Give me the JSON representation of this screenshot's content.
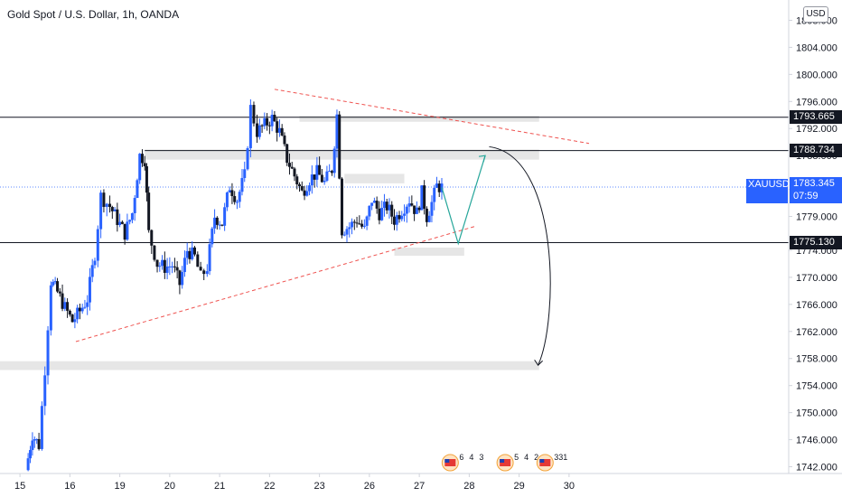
{
  "header": {
    "title": "Gold Spot / U.S. Dollar, 1h, OANDA",
    "currency_button": "USD"
  },
  "ticker": {
    "symbol": "XAUUSD",
    "price": "1783.345",
    "countdown": "07:59"
  },
  "colors": {
    "up": "#2962ff",
    "down": "#131722",
    "ticker_bg": "#2962ff",
    "trendline": "#ef5350",
    "projection": "#26a69a",
    "zone": "#e6e6e6"
  },
  "chart_data": {
    "type": "candlestick",
    "title": "Gold Spot / U.S. Dollar, 1h, OANDA",
    "ylim": [
      1741,
      1811
    ],
    "xlim": [
      14.6,
      30.4
    ],
    "yticks": [
      "1742.000",
      "1746.000",
      "1750.000",
      "1754.000",
      "1758.000",
      "1762.000",
      "1766.000",
      "1770.000",
      "1774.000",
      "1779.000",
      "1783.000",
      "1788.000",
      "1792.000",
      "1796.000",
      "1800.000",
      "1804.000",
      "1808.000"
    ],
    "ytick_values": [
      1742,
      1746,
      1750,
      1754,
      1758,
      1762,
      1766,
      1770,
      1774,
      1779,
      1783,
      1788,
      1792,
      1796,
      1800,
      1804,
      1808
    ],
    "xticks": [
      {
        "label": "15",
        "x": 15
      },
      {
        "label": "16",
        "x": 16
      },
      {
        "label": "19",
        "x": 17
      },
      {
        "label": "20",
        "x": 18
      },
      {
        "label": "21",
        "x": 19
      },
      {
        "label": "22",
        "x": 20
      },
      {
        "label": "23",
        "x": 21
      },
      {
        "label": "26",
        "x": 22
      },
      {
        "label": "27",
        "x": 23
      },
      {
        "label": "28",
        "x": 24
      },
      {
        "label": "29",
        "x": 25
      },
      {
        "label": "30",
        "x": 26
      }
    ],
    "price_path": [
      [
        15.12,
        1741.5
      ],
      [
        15.25,
        1746.8
      ],
      [
        15.38,
        1745.2
      ],
      [
        15.5,
        1756.5
      ],
      [
        15.62,
        1769.5
      ],
      [
        15.75,
        1767.8
      ],
      [
        15.9,
        1765.5
      ],
      [
        16.05,
        1763.5
      ],
      [
        16.2,
        1765.0
      ],
      [
        16.35,
        1766.8
      ],
      [
        16.5,
        1773.5
      ],
      [
        16.62,
        1782.0
      ],
      [
        16.8,
        1780.5
      ],
      [
        16.95,
        1778.5
      ],
      [
        17.1,
        1776.5
      ],
      [
        17.25,
        1779.5
      ],
      [
        17.4,
        1788.0
      ],
      [
        17.5,
        1787.5
      ],
      [
        17.58,
        1776.5
      ],
      [
        17.75,
        1772.0
      ],
      [
        17.9,
        1771.5
      ],
      [
        18.05,
        1771.8
      ],
      [
        18.2,
        1769.0
      ],
      [
        18.35,
        1774.0
      ],
      [
        18.5,
        1773.0
      ],
      [
        18.62,
        1770.0
      ],
      [
        18.75,
        1771.5
      ],
      [
        18.9,
        1779.0
      ],
      [
        19.05,
        1778.0
      ],
      [
        19.2,
        1783.5
      ],
      [
        19.35,
        1781.5
      ],
      [
        19.5,
        1785.0
      ],
      [
        19.62,
        1795.0
      ],
      [
        19.75,
        1791.5
      ],
      [
        19.9,
        1792.5
      ],
      [
        20.05,
        1793.5
      ],
      [
        20.2,
        1791.5
      ],
      [
        20.35,
        1787.5
      ],
      [
        20.5,
        1785.0
      ],
      [
        20.65,
        1782.5
      ],
      [
        20.8,
        1784.5
      ],
      [
        20.95,
        1785.5
      ],
      [
        21.1,
        1784.0
      ],
      [
        21.25,
        1786.0
      ],
      [
        21.35,
        1794.0
      ],
      [
        21.45,
        1777.0
      ],
      [
        21.6,
        1777.5
      ],
      [
        21.75,
        1778.5
      ],
      [
        21.9,
        1777.0
      ],
      [
        22.05,
        1781.5
      ],
      [
        22.2,
        1779.5
      ],
      [
        22.35,
        1780.5
      ],
      [
        22.5,
        1778.5
      ],
      [
        22.65,
        1780.0
      ],
      [
        22.8,
        1781.5
      ],
      [
        22.95,
        1779.5
      ],
      [
        23.05,
        1782.5
      ],
      [
        23.15,
        1779.0
      ],
      [
        23.25,
        1781.0
      ],
      [
        23.35,
        1783.5
      ],
      [
        23.45,
        1783.3
      ]
    ],
    "horizontal_levels": [
      {
        "value": 1793.665,
        "label": "1793.665",
        "x_start": 14.6
      },
      {
        "value": 1788.734,
        "label": "1788.734",
        "x_start": 17.5
      },
      {
        "value": 1775.13,
        "label": "1775.130",
        "x_start": 14.6
      }
    ],
    "last_price": {
      "value": 1783.345
    },
    "zones": [
      {
        "x0": 17.5,
        "x1": 25.4,
        "y0": 1787.4,
        "y1": 1788.9
      },
      {
        "x0": 20.6,
        "x1": 25.4,
        "y0": 1793.0,
        "y1": 1793.9
      },
      {
        "x0": 21.5,
        "x1": 22.7,
        "y0": 1783.9,
        "y1": 1785.3
      },
      {
        "x0": 22.5,
        "x1": 23.9,
        "y0": 1773.2,
        "y1": 1774.4
      },
      {
        "x0": 14.6,
        "x1": 25.4,
        "y0": 1756.3,
        "y1": 1757.6
      }
    ],
    "trendlines": [
      {
        "x0": 16.12,
        "y0": 1760.5,
        "x1": 24.1,
        "y1": 1777.5,
        "style": "dashed"
      },
      {
        "x0": 20.1,
        "y0": 1797.8,
        "x1": 26.4,
        "y1": 1789.8,
        "style": "dashed"
      }
    ],
    "projection_path": [
      [
        23.45,
        1783.3
      ],
      [
        23.78,
        1775.0
      ],
      [
        24.32,
        1788.0
      ]
    ],
    "curved_arrow": {
      "from": [
        24.4,
        1789.3
      ],
      "control1": [
        25.8,
        1788.0
      ],
      "control2": [
        25.8,
        1764.0
      ],
      "to": [
        25.38,
        1757.0
      ]
    },
    "events": [
      {
        "x": 23.8,
        "counts": [
          "6",
          "4",
          "3"
        ]
      },
      {
        "x": 24.9,
        "counts": [
          "5",
          "4",
          "2"
        ]
      },
      {
        "x": 25.7,
        "counts": [
          "331"
        ]
      }
    ]
  }
}
